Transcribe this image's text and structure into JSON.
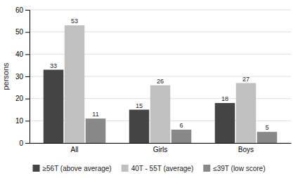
{
  "chart_data": {
    "type": "bar",
    "categories": [
      "All",
      "Girls",
      "Boys"
    ],
    "series": [
      {
        "name": "≥56T (above average)",
        "color": "#444444",
        "values": [
          33,
          15,
          18
        ]
      },
      {
        "name": "40T - 55T (average)",
        "color": "#c0c0c0",
        "values": [
          53,
          26,
          27
        ]
      },
      {
        "name": "≤39T (low score)",
        "color": "#888888",
        "values": [
          11,
          6,
          5
        ]
      }
    ],
    "ylabel": "persons",
    "ylim": [
      0,
      60
    ],
    "yticks": [
      0,
      10,
      20,
      30,
      40,
      50,
      60
    ],
    "grid": true,
    "data_labels": true,
    "legend": "bottom"
  }
}
